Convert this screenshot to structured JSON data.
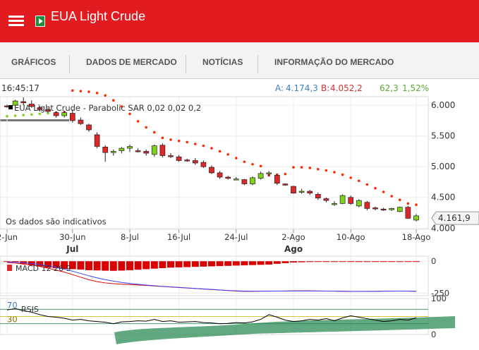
{
  "app_bar": {
    "title": "EUA Light Crude"
  },
  "tabs": [
    {
      "label": "GRÁFICOS",
      "active": true
    },
    {
      "label": "DADOS DE MERCADO",
      "active": false
    },
    {
      "label": "NOTÍCIAS",
      "active": false
    },
    {
      "label": "INFORMAÇÃO DO MERCADO",
      "active": false
    }
  ],
  "quote": {
    "time": "16:45:17",
    "ask_label": "A:",
    "ask": "4.174,3",
    "bid_label": "B:",
    "bid": "4.052,2",
    "change": "62,3",
    "change_pct": "1,52%"
  },
  "colors": {
    "bar": "#e11b1f",
    "up": "#7fd319",
    "down": "#e02727",
    "sar": "#ff2a00",
    "macd": "#d80000",
    "signal": "#4040ff",
    "rsi": "#000000",
    "rsi_band": "#2e8b57",
    "ask": "#3d7ebf",
    "bid": "#cc3333",
    "change": "#55aa33"
  },
  "chart_data": {
    "type": "candlestick",
    "legend": "EUA Light Crude - Parabolic SAR 0,02 0,02 0,2",
    "note": "Os dados são indicativos",
    "last_price_label": "4.161,9",
    "last_price": 4161.9,
    "y_ticks": [
      "6.000",
      "5.500",
      "5.000",
      "4.500",
      "4.000"
    ],
    "y_tick_values": [
      6000,
      5500,
      5000,
      4500,
      4000
    ],
    "ylim": [
      3980,
      6140
    ],
    "x_ticks": [
      {
        "label": "2-Jun",
        "index": 0
      },
      {
        "label": "30-Jun",
        "index": 8
      },
      {
        "label": "8-Jul",
        "index": 15
      },
      {
        "label": "16-Jul",
        "index": 21
      },
      {
        "label": "24-Jul",
        "index": 28
      },
      {
        "label": "2-Ago",
        "index": 35
      },
      {
        "label": "10-Ago",
        "index": 42
      },
      {
        "label": "18-Ago",
        "index": 50
      }
    ],
    "months": [
      {
        "label": "Jul",
        "index": 8
      },
      {
        "label": "Ago",
        "index": 35
      }
    ],
    "candles": [
      {
        "o": 5990,
        "h": 6010,
        "l": 5960,
        "c": 5980
      },
      {
        "o": 6000,
        "h": 6090,
        "l": 5980,
        "c": 6070
      },
      {
        "o": 6060,
        "h": 6130,
        "l": 6000,
        "c": 6040
      },
      {
        "o": 6020,
        "h": 6080,
        "l": 5960,
        "c": 5980
      },
      {
        "o": 5960,
        "h": 5990,
        "l": 5900,
        "c": 5930
      },
      {
        "o": 5930,
        "h": 5960,
        "l": 5880,
        "c": 5900
      },
      {
        "o": 5880,
        "h": 5900,
        "l": 5800,
        "c": 5830
      },
      {
        "o": 5830,
        "h": 5910,
        "l": 5800,
        "c": 5880
      },
      {
        "o": 5870,
        "h": 5930,
        "l": 5720,
        "c": 5750
      },
      {
        "o": 5760,
        "h": 5800,
        "l": 5680,
        "c": 5700
      },
      {
        "o": 5680,
        "h": 5700,
        "l": 5570,
        "c": 5600
      },
      {
        "o": 5520,
        "h": 5560,
        "l": 5300,
        "c": 5330
      },
      {
        "o": 5320,
        "h": 5350,
        "l": 5080,
        "c": 5230
      },
      {
        "o": 5230,
        "h": 5280,
        "l": 5180,
        "c": 5250
      },
      {
        "o": 5260,
        "h": 5320,
        "l": 5220,
        "c": 5300
      },
      {
        "o": 5300,
        "h": 5360,
        "l": 5240,
        "c": 5330
      },
      {
        "o": 5260,
        "h": 5300,
        "l": 5230,
        "c": 5250
      },
      {
        "o": 5250,
        "h": 5280,
        "l": 5180,
        "c": 5220
      },
      {
        "o": 5200,
        "h": 5360,
        "l": 5160,
        "c": 5340
      },
      {
        "o": 5350,
        "h": 5380,
        "l": 5150,
        "c": 5180
      },
      {
        "o": 5180,
        "h": 5220,
        "l": 5140,
        "c": 5170
      },
      {
        "o": 5160,
        "h": 5190,
        "l": 5080,
        "c": 5100
      },
      {
        "o": 5110,
        "h": 5130,
        "l": 5080,
        "c": 5100
      },
      {
        "o": 5100,
        "h": 5140,
        "l": 5030,
        "c": 5060
      },
      {
        "o": 5070,
        "h": 5100,
        "l": 4980,
        "c": 5000
      },
      {
        "o": 4990,
        "h": 5020,
        "l": 4880,
        "c": 4900
      },
      {
        "o": 4900,
        "h": 4930,
        "l": 4800,
        "c": 4830
      },
      {
        "o": 4830,
        "h": 4850,
        "l": 4790,
        "c": 4810
      },
      {
        "o": 4800,
        "h": 4830,
        "l": 4790,
        "c": 4800
      },
      {
        "o": 4790,
        "h": 4800,
        "l": 4700,
        "c": 4720
      },
      {
        "o": 4720,
        "h": 4840,
        "l": 4700,
        "c": 4820
      },
      {
        "o": 4810,
        "h": 4920,
        "l": 4790,
        "c": 4890
      },
      {
        "o": 4890,
        "h": 4930,
        "l": 4840,
        "c": 4900
      },
      {
        "o": 4860,
        "h": 4880,
        "l": 4700,
        "c": 4730
      },
      {
        "o": 4720,
        "h": 4730,
        "l": 4690,
        "c": 4700
      },
      {
        "o": 4680,
        "h": 4690,
        "l": 4560,
        "c": 4570
      },
      {
        "o": 4600,
        "h": 4640,
        "l": 4560,
        "c": 4600
      },
      {
        "o": 4600,
        "h": 4620,
        "l": 4540,
        "c": 4570
      },
      {
        "o": 4550,
        "h": 4580,
        "l": 4460,
        "c": 4490
      },
      {
        "o": 4480,
        "h": 4500,
        "l": 4420,
        "c": 4450
      },
      {
        "o": 4400,
        "h": 4440,
        "l": 4360,
        "c": 4400
      },
      {
        "o": 4400,
        "h": 4550,
        "l": 4390,
        "c": 4530
      },
      {
        "o": 4500,
        "h": 4530,
        "l": 4380,
        "c": 4400
      },
      {
        "o": 4360,
        "h": 4470,
        "l": 4340,
        "c": 4450
      },
      {
        "o": 4420,
        "h": 4440,
        "l": 4290,
        "c": 4320
      },
      {
        "o": 4330,
        "h": 4350,
        "l": 4290,
        "c": 4320
      },
      {
        "o": 4310,
        "h": 4330,
        "l": 4280,
        "c": 4300
      },
      {
        "o": 4300,
        "h": 4330,
        "l": 4280,
        "c": 4320
      },
      {
        "o": 4270,
        "h": 4350,
        "l": 4260,
        "c": 4340
      },
      {
        "o": 4340,
        "h": 4360,
        "l": 4150,
        "c": 4160
      },
      {
        "o": 4130,
        "h": 4230,
        "l": 4110,
        "c": 4200
      }
    ],
    "sar": [
      {
        "i": 0,
        "v": 5820
      },
      {
        "i": 1,
        "v": 5830
      },
      {
        "i": 2,
        "v": 5840
      },
      {
        "i": 3,
        "v": 5850
      },
      {
        "i": 4,
        "v": 5860
      },
      {
        "i": 5,
        "v": 5870
      },
      {
        "i": 6,
        "v": 5880
      },
      {
        "i": 7,
        "v": 5890
      },
      {
        "i": 8,
        "v": 6240
      },
      {
        "i": 9,
        "v": 6230
      },
      {
        "i": 10,
        "v": 6220
      },
      {
        "i": 11,
        "v": 6200
      },
      {
        "i": 12,
        "v": 6160
      },
      {
        "i": 13,
        "v": 6080
      },
      {
        "i": 14,
        "v": 5980
      },
      {
        "i": 15,
        "v": 5860
      },
      {
        "i": 16,
        "v": 5740
      },
      {
        "i": 17,
        "v": 5640
      },
      {
        "i": 18,
        "v": 5560
      },
      {
        "i": 19,
        "v": 5470
      },
      {
        "i": 20,
        "v": 5440
      },
      {
        "i": 21,
        "v": 5420
      },
      {
        "i": 22,
        "v": 5400
      },
      {
        "i": 23,
        "v": 5370
      },
      {
        "i": 24,
        "v": 5340
      },
      {
        "i": 25,
        "v": 5300
      },
      {
        "i": 26,
        "v": 5250
      },
      {
        "i": 27,
        "v": 5200
      },
      {
        "i": 28,
        "v": 5140
      },
      {
        "i": 29,
        "v": 5080
      },
      {
        "i": 30,
        "v": 5040
      },
      {
        "i": 31,
        "v": 5010
      },
      {
        "i": 32,
        "v": 4860
      },
      {
        "i": 33,
        "v": 4870
      },
      {
        "i": 34,
        "v": 4880
      },
      {
        "i": 35,
        "v": 4990
      },
      {
        "i": 36,
        "v": 4990
      },
      {
        "i": 37,
        "v": 4980
      },
      {
        "i": 38,
        "v": 4960
      },
      {
        "i": 39,
        "v": 4940
      },
      {
        "i": 40,
        "v": 4910
      },
      {
        "i": 41,
        "v": 4870
      },
      {
        "i": 42,
        "v": 4820
      },
      {
        "i": 43,
        "v": 4770
      },
      {
        "i": 44,
        "v": 4710
      },
      {
        "i": 45,
        "v": 4650
      },
      {
        "i": 46,
        "v": 4590
      },
      {
        "i": 47,
        "v": 4520
      },
      {
        "i": 48,
        "v": 4460
      },
      {
        "i": 49,
        "v": 4400
      },
      {
        "i": 50,
        "v": 4380
      }
    ],
    "macd": {
      "label": "MACD 12 26 9",
      "ticks": [
        "0",
        "-250"
      ],
      "tick_values": [
        0,
        -250
      ],
      "ylim": [
        -270,
        40
      ],
      "histogram": [
        -5,
        -10,
        -20,
        -30,
        -40,
        -50,
        -55,
        -60,
        -62,
        -65,
        -70,
        -72,
        -74,
        -75,
        -73,
        -70,
        -66,
        -62,
        -58,
        -54,
        -50,
        -48,
        -46,
        -44,
        -42,
        -40,
        -38,
        -36,
        -34,
        -32,
        -30,
        -28,
        -26,
        -20,
        -15,
        -10,
        -8,
        -6,
        -5,
        -4,
        -3,
        -3,
        -5,
        -6,
        -4,
        -3,
        -2,
        -2,
        -2,
        -3,
        -2
      ],
      "macd_line": [
        -10,
        -15,
        -22,
        -30,
        -40,
        -55,
        -70,
        -85,
        -105,
        -125,
        -145,
        -160,
        -170,
        -176,
        -180,
        -183,
        -186,
        -190,
        -194,
        -198,
        -202,
        -206,
        -210,
        -214,
        -218,
        -222,
        -226,
        -230,
        -234,
        -236,
        -236,
        -235,
        -234,
        -234,
        -233,
        -232,
        -232,
        -232,
        -233,
        -234,
        -235,
        -236,
        -237,
        -237,
        -236,
        -236,
        -235,
        -234,
        -234,
        -235,
        -236
      ],
      "signal_line": [
        -5,
        -8,
        -12,
        -18,
        -26,
        -36,
        -48,
        -62,
        -78,
        -96,
        -114,
        -130,
        -144,
        -156,
        -166,
        -174,
        -181,
        -187,
        -192,
        -197,
        -201,
        -205,
        -209,
        -213,
        -217,
        -221,
        -225,
        -229,
        -232,
        -234,
        -235,
        -235,
        -235,
        -234,
        -234,
        -233,
        -233,
        -233,
        -233,
        -234,
        -234,
        -235,
        -236,
        -236,
        -236,
        -236,
        -235,
        -235,
        -234,
        -234,
        -235
      ]
    },
    "rsi": {
      "label": "RSIS",
      "ticks": [
        "100",
        "0"
      ],
      "tick_values": [
        100,
        0
      ],
      "level_labels": [
        "70",
        "30"
      ],
      "levels": [
        70,
        30
      ],
      "ylim": [
        0,
        100
      ],
      "values": [
        68,
        72,
        66,
        62,
        55,
        50,
        48,
        45,
        40,
        42,
        38,
        36,
        34,
        30,
        35,
        36,
        38,
        37,
        42,
        36,
        38,
        34,
        35,
        36,
        33,
        32,
        30,
        31,
        33,
        32,
        35,
        42,
        55,
        48,
        40,
        36,
        38,
        42,
        40,
        44,
        38,
        46,
        52,
        48,
        44,
        40,
        36,
        38,
        42,
        40,
        46
      ]
    }
  }
}
